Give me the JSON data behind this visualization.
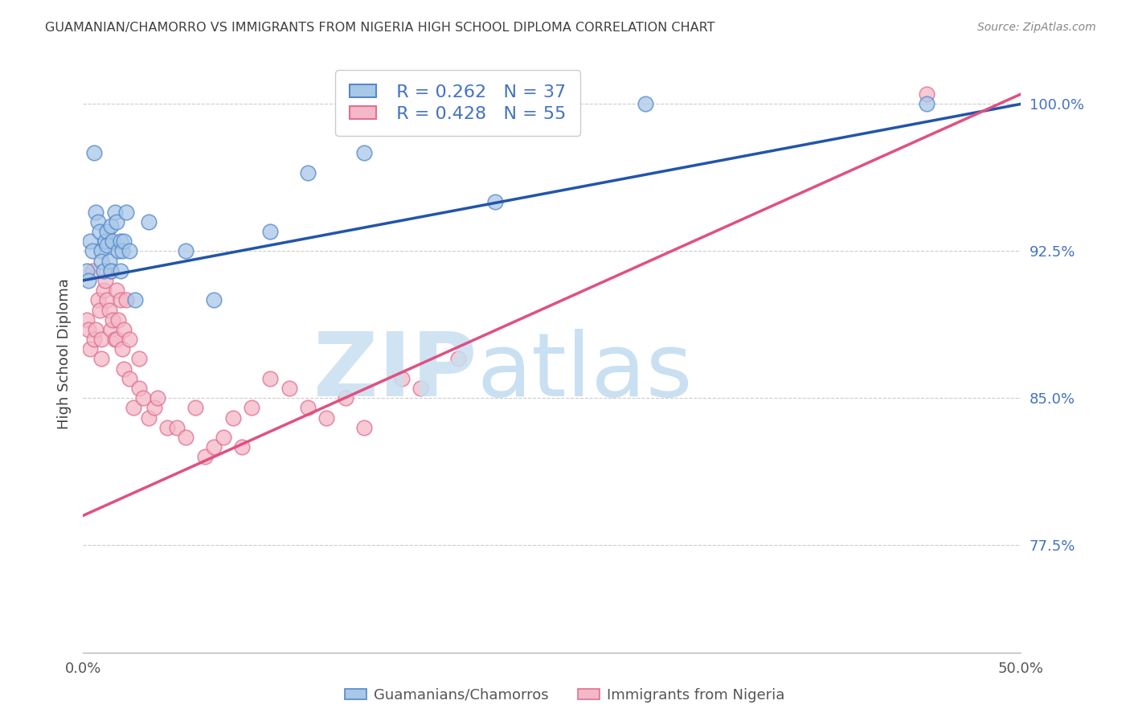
{
  "title": "GUAMANIAN/CHAMORRO VS IMMIGRANTS FROM NIGERIA HIGH SCHOOL DIPLOMA CORRELATION CHART",
  "source": "Source: ZipAtlas.com",
  "ylabel": "High School Diploma",
  "right_yticks": [
    77.5,
    85.0,
    92.5,
    100.0
  ],
  "right_ytick_labels": [
    "77.5%",
    "85.0%",
    "92.5%",
    "100.0%"
  ],
  "xlim": [
    0.0,
    50.0
  ],
  "ylim": [
    72.0,
    102.5
  ],
  "legend_blue_r": "R = 0.262",
  "legend_blue_n": "N = 37",
  "legend_pink_r": "R = 0.428",
  "legend_pink_n": "N = 55",
  "blue_color": "#a8c8e8",
  "pink_color": "#f4b8c8",
  "blue_edge_color": "#5588cc",
  "pink_edge_color": "#e07090",
  "blue_line_color": "#2255aa",
  "pink_line_color": "#e05080",
  "label_blue": "Guamanians/Chamorros",
  "label_pink": "Immigrants from Nigeria",
  "r_n_color": "#4472c4",
  "title_color": "#404040",
  "right_label_color": "#4472c4",
  "blue_line_y0": 91.0,
  "blue_line_y1": 100.0,
  "pink_line_y0": 79.0,
  "pink_line_y1": 100.5,
  "blue_scatter_x": [
    0.2,
    0.3,
    0.4,
    0.5,
    0.6,
    0.7,
    0.8,
    0.9,
    1.0,
    1.0,
    1.1,
    1.2,
    1.3,
    1.3,
    1.4,
    1.5,
    1.5,
    1.6,
    1.7,
    1.8,
    1.9,
    2.0,
    2.0,
    2.1,
    2.2,
    2.3,
    2.5,
    3.5,
    5.5,
    7.0,
    10.0,
    12.0,
    15.0,
    22.0,
    30.0,
    45.0,
    2.8
  ],
  "blue_scatter_y": [
    91.5,
    91.0,
    93.0,
    92.5,
    97.5,
    94.5,
    94.0,
    93.5,
    92.5,
    92.0,
    91.5,
    93.0,
    93.5,
    92.8,
    92.0,
    91.5,
    93.8,
    93.0,
    94.5,
    94.0,
    92.5,
    91.5,
    93.0,
    92.5,
    93.0,
    94.5,
    92.5,
    94.0,
    92.5,
    90.0,
    93.5,
    96.5,
    97.5,
    95.0,
    100.0,
    100.0,
    90.0
  ],
  "pink_scatter_x": [
    0.2,
    0.3,
    0.4,
    0.5,
    0.6,
    0.7,
    0.8,
    0.9,
    1.0,
    1.0,
    1.1,
    1.2,
    1.3,
    1.4,
    1.5,
    1.5,
    1.6,
    1.7,
    1.8,
    1.8,
    1.9,
    2.0,
    2.1,
    2.2,
    2.2,
    2.3,
    2.5,
    2.5,
    2.7,
    3.0,
    3.0,
    3.2,
    3.5,
    3.8,
    4.0,
    4.5,
    5.0,
    5.5,
    6.0,
    6.5,
    7.0,
    7.5,
    8.0,
    8.5,
    9.0,
    10.0,
    11.0,
    12.0,
    13.0,
    14.0,
    15.0,
    17.0,
    18.0,
    20.0,
    45.0
  ],
  "pink_scatter_y": [
    89.0,
    88.5,
    87.5,
    91.5,
    88.0,
    88.5,
    90.0,
    89.5,
    88.0,
    87.0,
    90.5,
    91.0,
    90.0,
    89.5,
    91.5,
    88.5,
    89.0,
    88.0,
    90.5,
    88.0,
    89.0,
    90.0,
    87.5,
    88.5,
    86.5,
    90.0,
    88.0,
    86.0,
    84.5,
    87.0,
    85.5,
    85.0,
    84.0,
    84.5,
    85.0,
    83.5,
    83.5,
    83.0,
    84.5,
    82.0,
    82.5,
    83.0,
    84.0,
    82.5,
    84.5,
    86.0,
    85.5,
    84.5,
    84.0,
    85.0,
    83.5,
    86.0,
    85.5,
    87.0,
    100.5
  ]
}
